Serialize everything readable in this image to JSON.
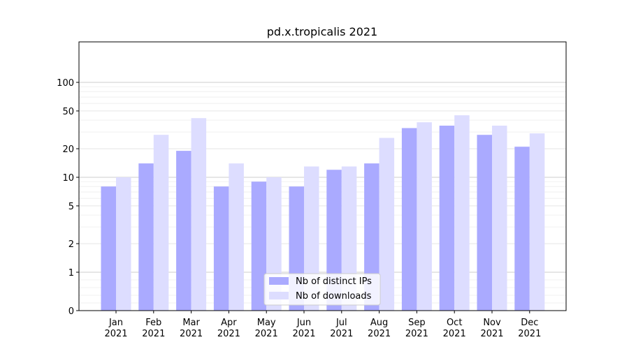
{
  "chart_data": {
    "type": "bar",
    "title": "pd.x.tropicalis 2021",
    "xlabel": "",
    "ylabel": "",
    "yscale": "symlog",
    "ylim": [
      0,
      120
    ],
    "grid": true,
    "legend_position": "bottom-center",
    "yticks": [
      {
        "value": 0,
        "label": "0"
      },
      {
        "value": 1,
        "label": "1"
      },
      {
        "value": 2,
        "label": "2"
      },
      {
        "value": 5,
        "label": "5"
      },
      {
        "value": 10,
        "label": "10"
      },
      {
        "value": 20,
        "label": "20"
      },
      {
        "value": 50,
        "label": "50"
      },
      {
        "value": 100,
        "label": "100"
      }
    ],
    "categories": [
      {
        "month": "Jan",
        "year": "2021"
      },
      {
        "month": "Feb",
        "year": "2021"
      },
      {
        "month": "Mar",
        "year": "2021"
      },
      {
        "month": "Apr",
        "year": "2021"
      },
      {
        "month": "May",
        "year": "2021"
      },
      {
        "month": "Jun",
        "year": "2021"
      },
      {
        "month": "Jul",
        "year": "2021"
      },
      {
        "month": "Aug",
        "year": "2021"
      },
      {
        "month": "Sep",
        "year": "2021"
      },
      {
        "month": "Oct",
        "year": "2021"
      },
      {
        "month": "Nov",
        "year": "2021"
      },
      {
        "month": "Dec",
        "year": "2021"
      }
    ],
    "series": [
      {
        "name": "Nb of distinct IPs",
        "color": "#aaaaff",
        "values": [
          8,
          14,
          19,
          8,
          9,
          8,
          12,
          14,
          33,
          35,
          28,
          21
        ]
      },
      {
        "name": "Nb of downloads",
        "color": "#ddddff",
        "values": [
          10,
          28,
          42,
          14,
          10,
          13,
          13,
          26,
          38,
          45,
          35,
          29
        ]
      }
    ]
  }
}
